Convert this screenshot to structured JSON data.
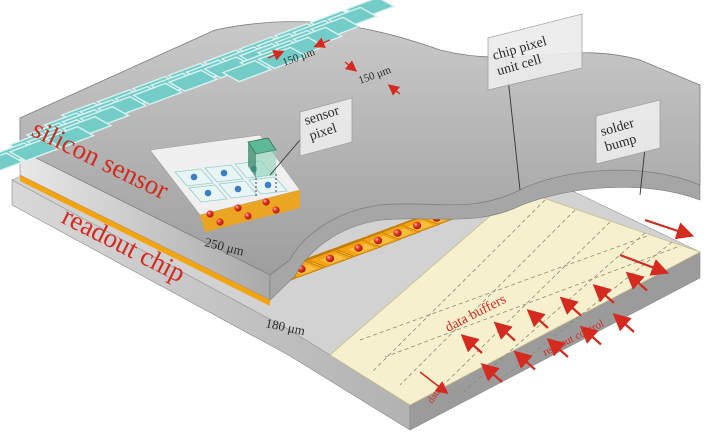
{
  "labels": {
    "silicon_sensor": "silicon sensor",
    "readout_chip": "readout chip",
    "sensor_thickness": "250 μm",
    "chip_thickness": "180 μm",
    "pitch_x": "150 μm",
    "pitch_y": "150 μm",
    "sensor_pixel": [
      "sensor",
      "pixel"
    ],
    "chip_pixel_unit_cell": [
      "chip pixel",
      "unit cell"
    ],
    "solder_bump": [
      "solder",
      "bump"
    ],
    "data_buffers": "data buffers",
    "readout_control": "readout control",
    "data": "data"
  },
  "colors": {
    "sensor_tile": "#74ccc9",
    "sensor_highlight": "#4aa386",
    "pixel_orange": "#f2a413",
    "bump_red": "#e0221c",
    "buffer_cream": "#f6f0cf",
    "arrow_red": "#d42a1f",
    "metal_gray": "#bdbdbd"
  }
}
